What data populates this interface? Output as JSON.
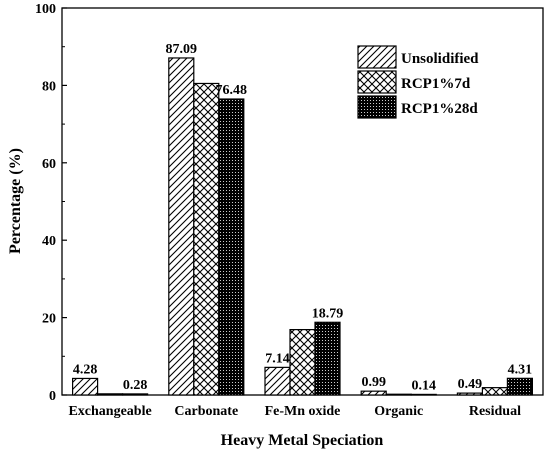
{
  "chart_data": {
    "type": "bar",
    "xlabel": "Heavy Metal Speciation",
    "ylabel": "Percentage (%)",
    "ylim": [
      0,
      100
    ],
    "yticks": [
      "0",
      "20",
      "40",
      "60",
      "80",
      "100"
    ],
    "categories": [
      "Exchangeable",
      "Carbonate",
      "Fe-Mn oxide",
      "Organic",
      "Residual"
    ],
    "series": [
      {
        "name": "Unsolidified",
        "values": [
          4.28,
          87.09,
          7.14,
          0.99,
          0.49
        ],
        "pattern": "diagonal-hatch"
      },
      {
        "name": "RCP1%7d",
        "values": [
          0.3,
          80.5,
          16.9,
          0.2,
          1.9
        ],
        "pattern": "crosshatch"
      },
      {
        "name": "RCP1%28d",
        "values": [
          0.28,
          76.48,
          18.79,
          0.14,
          4.31
        ],
        "pattern": "dots-dense"
      }
    ],
    "data_labels": [
      {
        "text": "4.28",
        "category": 0,
        "series": 0
      },
      {
        "text": "0.28",
        "category": 0,
        "series": 2
      },
      {
        "text": "87.09",
        "category": 1,
        "series": 0
      },
      {
        "text": "76.48",
        "category": 1,
        "series": 2
      },
      {
        "text": "7.14",
        "category": 2,
        "series": 0
      },
      {
        "text": "18.79",
        "category": 2,
        "series": 2
      },
      {
        "text": "0.99",
        "category": 3,
        "series": 0
      },
      {
        "text": "0.14",
        "category": 3,
        "series": 2
      },
      {
        "text": "0.49",
        "category": 4,
        "series": 0
      },
      {
        "text": "4.31",
        "category": 4,
        "series": 2
      }
    ],
    "legend_position": "top-right",
    "grid": false
  }
}
